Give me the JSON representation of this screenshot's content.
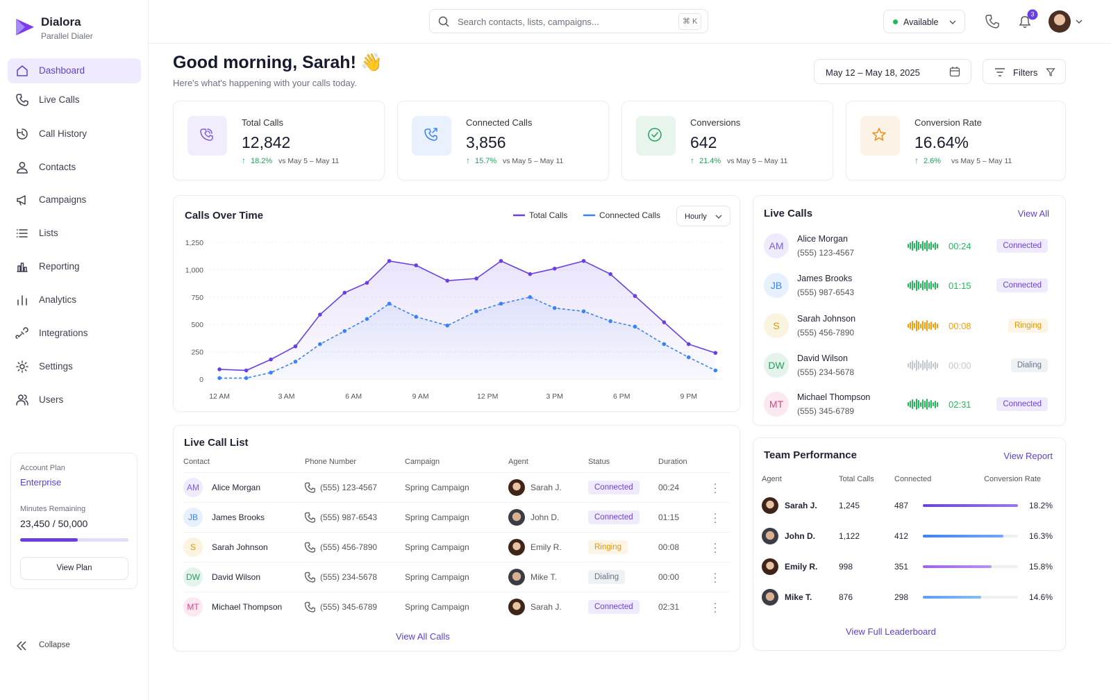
{
  "brand": {
    "name": "Dialora",
    "tagline": "Parallel Dialer"
  },
  "nav": [
    "Dashboard",
    "Live Calls",
    "Call History",
    "Contacts",
    "Campaigns",
    "Lists",
    "Reporting",
    "Analytics",
    "Integrations",
    "Settings",
    "Users"
  ],
  "plan": {
    "label": "Account Plan",
    "name": "Enterprise",
    "minutes_label": "Minutes Remaining",
    "minutes": "23,450 / 50,000",
    "button": "View Plan"
  },
  "collapse": "Collapse",
  "header": {
    "search": "Search contacts, lists, campaigns...",
    "shortcut": "⌘ K",
    "status": "Available",
    "notifications": "3"
  },
  "greeting": {
    "title": "Good morning, Sarah! 👋",
    "subtitle": "Here's what's happening with your calls today."
  },
  "date_range": "May 12 – May 18, 2025",
  "filters": "Filters",
  "stats": [
    {
      "label": "Total Calls",
      "value": "12,842",
      "change": "18.2%",
      "compare": "vs May 5 – May 11",
      "color": "#7c5ce6"
    },
    {
      "label": "Connected Calls",
      "value": "3,856",
      "change": "15.7%",
      "compare": "vs May 5 – May 11",
      "color": "#3b82f6"
    },
    {
      "label": "Conversions",
      "value": "642",
      "change": "21.4%",
      "compare": "vs May 5 – May 11",
      "color": "#22a05a"
    },
    {
      "label": "Conversion Rate",
      "value": "16.64%",
      "change": "2.6%",
      "compare": "vs May 5 – May 11",
      "color": "#f08c1a"
    }
  ],
  "chart": {
    "type": "line",
    "title": "Calls Over Time",
    "interval": "Hourly",
    "x": [
      0,
      1.2,
      2.3,
      3.4,
      4.5,
      5.6,
      6.6,
      7.6,
      8.8,
      10.2,
      11.5,
      12.6,
      13.9,
      15,
      16.3,
      17.5,
      18.6,
      19.9,
      21,
      22.2
    ],
    "series": [
      {
        "name": "Total Calls",
        "color": "#6a3fe0",
        "values": [
          90,
          80,
          180,
          300,
          590,
          790,
          880,
          1080,
          1040,
          900,
          920,
          1080,
          960,
          1010,
          1080,
          960,
          760,
          520,
          320,
          240
        ]
      },
      {
        "name": "Connected Calls",
        "color": "#3b82f6",
        "values": [
          10,
          10,
          60,
          160,
          320,
          440,
          550,
          690,
          570,
          490,
          620,
          690,
          750,
          650,
          620,
          530,
          480,
          320,
          200,
          80
        ]
      }
    ],
    "xlim": [
      -0.5,
      22.5
    ],
    "xticks": [
      {
        "value": 0,
        "label": "12 AM"
      },
      {
        "value": 3,
        "label": "3 AM"
      },
      {
        "value": 6,
        "label": "6 AM"
      },
      {
        "value": 9,
        "label": "9 AM"
      },
      {
        "value": 12,
        "label": "12 PM"
      },
      {
        "value": 15,
        "label": "3 PM"
      },
      {
        "value": 18,
        "label": "6 PM"
      },
      {
        "value": 21,
        "label": "9 PM"
      }
    ],
    "ylim": [
      0,
      1250
    ],
    "yticks": [
      0,
      250,
      500,
      750,
      {
        "value": 1000,
        "label": "1,000"
      },
      {
        "value": 1250,
        "label": "1,250"
      }
    ],
    "grid": true
  },
  "live_calls": {
    "title": "Live Calls",
    "link": "View All",
    "items": [
      {
        "initials": "AM",
        "name": "Alice Morgan",
        "phone": "(555) 123-4567",
        "duration": "00:24",
        "status": "Connected",
        "color": "#7c5ce6",
        "status_color": "#6a3fe0",
        "wave_color": "#22b85a"
      },
      {
        "initials": "JB",
        "name": "James Brooks",
        "phone": "(555) 987-6543",
        "duration": "01:15",
        "status": "Connected",
        "color": "#3b82f6",
        "status_color": "#6a3fe0",
        "wave_color": "#22b85a"
      },
      {
        "initials": "S",
        "name": "Sarah Johnson",
        "phone": "(555) 456-7890",
        "duration": "00:08",
        "status": "Ringing",
        "color": "#d99a00",
        "status_color": "#e69500",
        "wave_color": "#f59e0b"
      },
      {
        "initials": "DW",
        "name": "David Wilson",
        "phone": "(555) 234-5678",
        "duration": "00:00",
        "status": "Dialing",
        "color": "#22a05a",
        "status_color": "#64748b",
        "wave_color": "#c2c8d2"
      },
      {
        "initials": "MT",
        "name": "Michael Thompson",
        "phone": "(555) 345-6789",
        "duration": "02:31",
        "status": "Connected",
        "color": "#e0408a",
        "status_color": "#6a3fe0",
        "wave_color": "#22b85a"
      }
    ]
  },
  "call_list": {
    "title": "Live Call List",
    "columns": [
      "Contact",
      "Phone Number",
      "Campaign",
      "Agent",
      "Status",
      "Duration"
    ],
    "rows": [
      {
        "initials": "AM",
        "contact": "Alice Morgan",
        "phone": "(555) 123-4567",
        "campaign": "Spring Campaign",
        "agent": "Sarah J.",
        "status": "Connected",
        "duration": "00:24",
        "color": "#7c5ce6",
        "status_color": "#6a3fe0"
      },
      {
        "initials": "JB",
        "contact": "James Brooks",
        "phone": "(555) 987-6543",
        "campaign": "Spring Campaign",
        "agent": "John D.",
        "status": "Connected",
        "duration": "01:15",
        "color": "#3b82f6",
        "status_color": "#6a3fe0"
      },
      {
        "initials": "S",
        "contact": "Sarah Johnson",
        "phone": "(555) 456-7890",
        "campaign": "Spring Campaign",
        "agent": "Emily R.",
        "status": "Ringing",
        "duration": "00:08",
        "color": "#d99a00",
        "status_color": "#e69500"
      },
      {
        "initials": "DW",
        "contact": "David Wilson",
        "phone": "(555) 234-5678",
        "campaign": "Spring Campaign",
        "agent": "Mike T.",
        "status": "Dialing",
        "duration": "00:00",
        "color": "#22a05a",
        "status_color": "#64748b"
      },
      {
        "initials": "MT",
        "contact": "Michael Thompson",
        "phone": "(555) 345-6789",
        "campaign": "Spring Campaign",
        "agent": "Sarah J.",
        "status": "Connected",
        "duration": "02:31",
        "color": "#e0408a",
        "status_color": "#6a3fe0"
      }
    ],
    "link": "View All Calls"
  },
  "team": {
    "title": "Team Performance",
    "link": "View Report",
    "columns": [
      "Agent",
      "Total Calls",
      "Connected",
      "Conversion Rate"
    ],
    "rows": [
      {
        "agent": "Sarah J.",
        "total": "1,245",
        "connected": 487,
        "rate": "18.2%",
        "color": "#6a3fe0"
      },
      {
        "agent": "John D.",
        "total": "1,122",
        "connected": 412,
        "rate": "16.3%",
        "color": "#3b82f6"
      },
      {
        "agent": "Emily R.",
        "total": "998",
        "connected": 351,
        "rate": "15.8%",
        "color": "#a062e8"
      },
      {
        "agent": "Mike T.",
        "total": "876",
        "connected": 298,
        "rate": "14.6%",
        "color": "#5aa0f5"
      }
    ],
    "footer": "View Full Leaderboard"
  }
}
